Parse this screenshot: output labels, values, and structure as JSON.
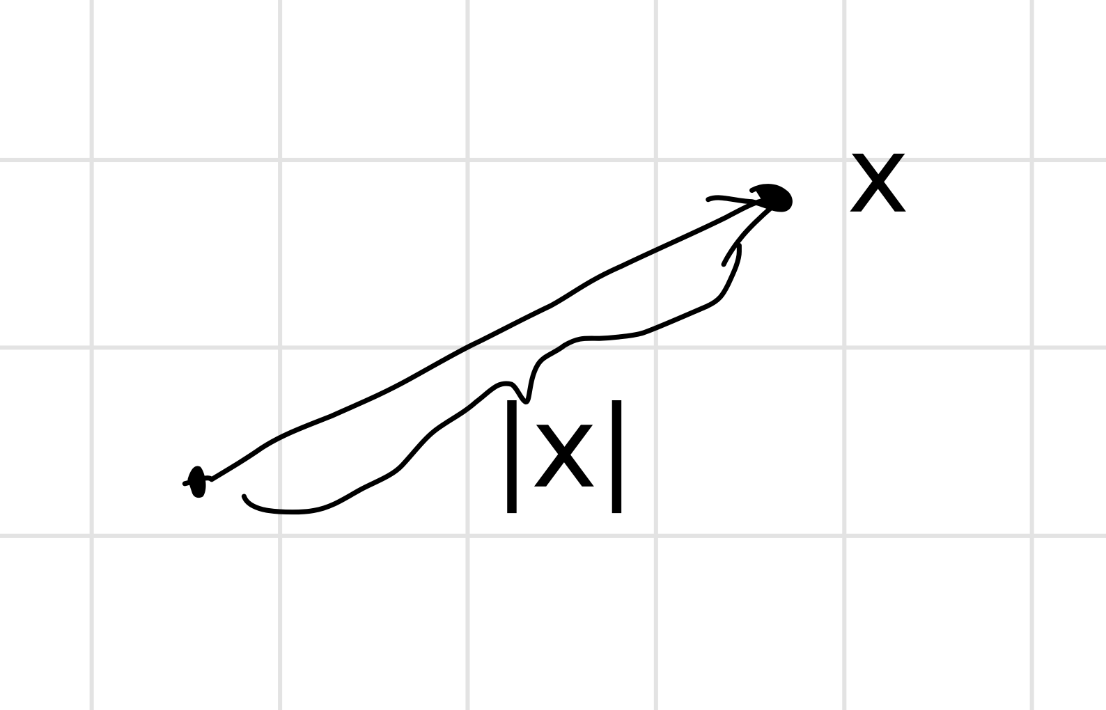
{
  "annotations": {
    "arrow_label": "|x|",
    "target_label": "x"
  }
}
